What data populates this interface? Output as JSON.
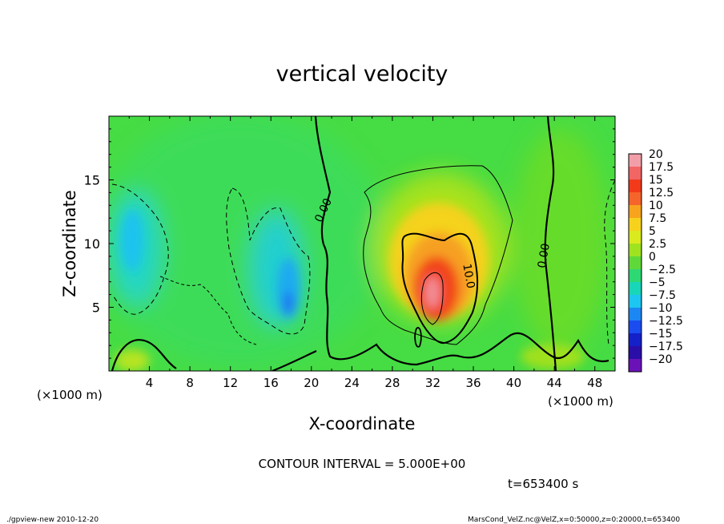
{
  "chart_data": {
    "type": "heatmap",
    "title": "vertical velocity",
    "xlabel": "X-coordinate",
    "ylabel": "Z-coordinate",
    "x_unit_left": "(×1000 m)",
    "x_unit_right": "(×1000 m)",
    "xlim": [
      0,
      50
    ],
    "ylim": [
      0,
      20
    ],
    "x_ticks": [
      4,
      8,
      12,
      16,
      20,
      24,
      28,
      32,
      36,
      40,
      44,
      48
    ],
    "y_ticks": [
      5,
      10,
      15
    ],
    "colorbar": {
      "labels": [
        "20",
        "17.5",
        "15",
        "12.5",
        "10",
        "7.5",
        "5",
        "2.5",
        "0",
        "−2.5",
        "−5",
        "−7.5",
        "−10",
        "−12.5",
        "−15",
        "−17.5",
        "−20"
      ],
      "colors": [
        "#f29ea8",
        "#f26565",
        "#f23a1a",
        "#f5642a",
        "#f7a31e",
        "#f6d21c",
        "#d9ea1e",
        "#9fe21f",
        "#5fd93a",
        "#2ed873",
        "#18d6b8",
        "#1cc6f0",
        "#1c87f2",
        "#1a4cf0",
        "#1420c8",
        "#2a0ea8",
        "#6a12b8"
      ],
      "bounds": [
        -20,
        20
      ]
    },
    "contour_labels": [
      {
        "text": "0.00",
        "x": 21.5,
        "z": 12.5,
        "angle": -65
      },
      {
        "text": "10.0",
        "x": 35.2,
        "z": 7.4,
        "angle": 80
      },
      {
        "text": "0.00",
        "x": 43.3,
        "z": 9.0,
        "angle": -80
      }
    ],
    "features": [
      {
        "name": "updraft core",
        "x": 32,
        "z": 7,
        "max": 20
      },
      {
        "name": "downdraft region",
        "x": 3,
        "z": 11,
        "min": -7.5
      },
      {
        "name": "downdraft region",
        "x": 18,
        "z": 6,
        "min": -10
      }
    ]
  },
  "contour_interval": "CONTOUR INTERVAL = 5.000E+00",
  "time_label": "t=653400  s",
  "footer": {
    "left": "./gpview-new   2010-12-20",
    "right": "MarsCond_VelZ.nc@VelZ,x=0:50000,z=0:20000,t=653400"
  }
}
